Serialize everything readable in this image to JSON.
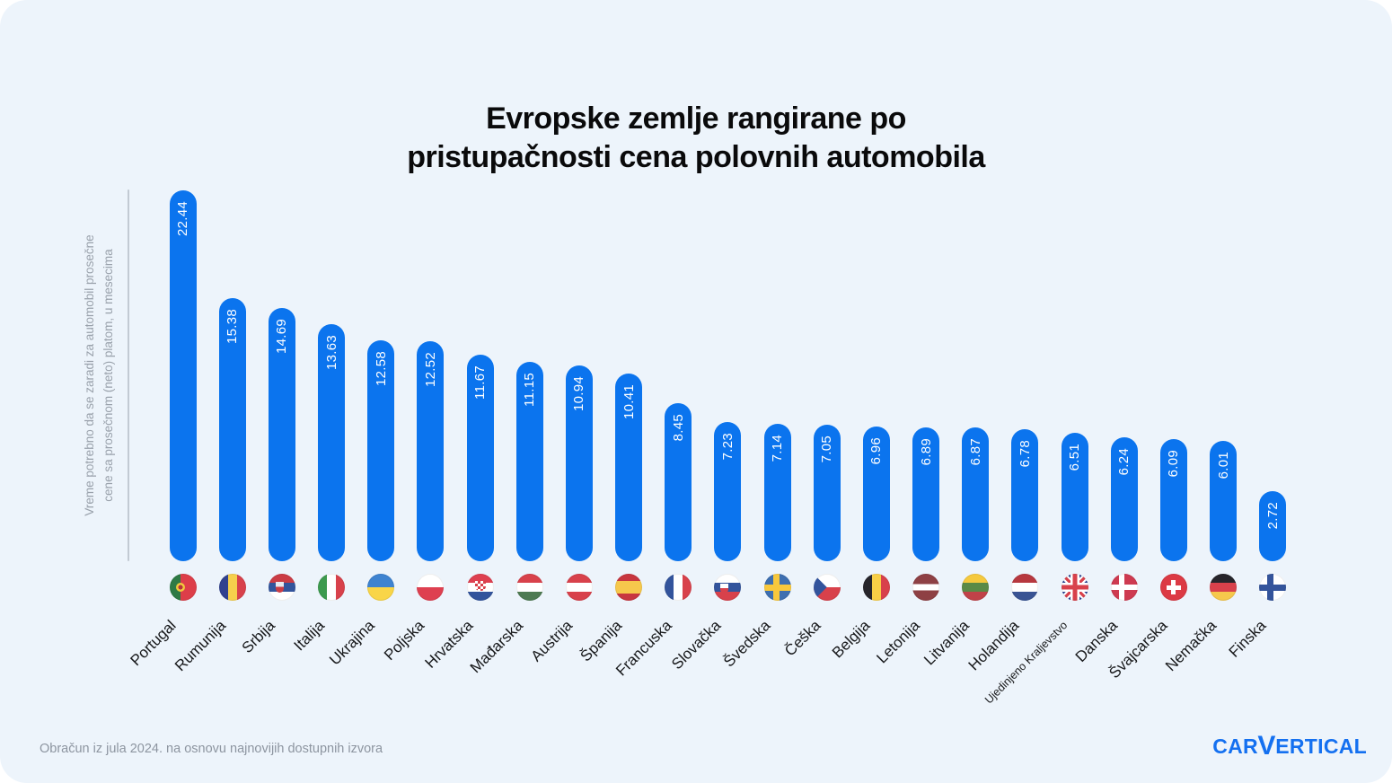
{
  "title_lines": [
    "Evropske zemlje rangirane po",
    "pristupačnosti cena polovnih automobila"
  ],
  "y_axis": {
    "line1": "Vreme potrebno da se zaradi za automobil prosečne",
    "line2": "cene sa prosečnom (neto) platom, u mesecima"
  },
  "footer": {
    "source_note": "Obračun iz jula 2024. na osnovu najnovijih dostupnih izvora",
    "logo_parts": [
      "CAR",
      "V",
      "ERTICAL"
    ]
  },
  "colors": {
    "background": "#EDF4FB",
    "bar": "#0B74EE",
    "title_text": "#0A0A0B",
    "value_label": "#FFFFFF",
    "country_label": "#17181A",
    "y_axis_text": "#99A1AB",
    "axis_line": "#C2CAD3",
    "footer_text": "#8D95A0",
    "logo": "#1470F0"
  },
  "chart_data": {
    "type": "bar",
    "title": "Evropske zemlje rangirane po pristupačnosti cena polovnih automobila",
    "ylabel": "Vreme potrebno da se zaradi za automobil prosečne cene sa prosečnom (neto) platom, u mesecima",
    "xlabel": "",
    "categories": [
      "Portugal",
      "Rumunija",
      "Srbija",
      "Italija",
      "Ukrajina",
      "Poljska",
      "Hrvatska",
      "Mađarska",
      "Austrija",
      "Španija",
      "Francuska",
      "Slovačka",
      "Švedska",
      "Češka",
      "Belgija",
      "Letonija",
      "Litvanija",
      "Holandija",
      "Ujedinjeno Kraljevstvo",
      "Danska",
      "Švajcarska",
      "Nemačka",
      "Finska"
    ],
    "values": [
      22.44,
      15.38,
      14.69,
      13.63,
      12.58,
      12.52,
      11.67,
      11.15,
      10.94,
      10.41,
      8.45,
      7.23,
      7.14,
      7.05,
      6.96,
      6.89,
      6.87,
      6.78,
      6.51,
      6.24,
      6.09,
      6.01,
      2.72
    ],
    "flags": [
      "pt",
      "ro",
      "rs",
      "it",
      "ua",
      "pl",
      "hr",
      "hu",
      "at",
      "es",
      "fr",
      "sk",
      "se",
      "cz",
      "be",
      "lv",
      "lt",
      "nl",
      "gb",
      "dk",
      "ch",
      "de",
      "fi"
    ],
    "ylim": [
      0,
      24
    ],
    "grid": false,
    "legend": false,
    "value_label_position": "inside-top-rotated-90",
    "xlabel_rotation": -45
  }
}
